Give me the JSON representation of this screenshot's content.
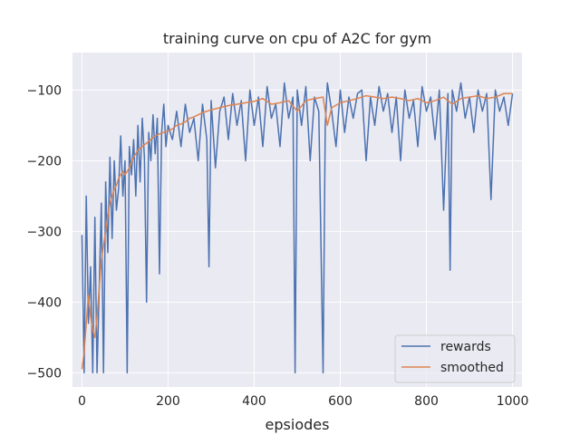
{
  "chart_data": {
    "type": "line",
    "title": "training curve on cpu of A2C for gym",
    "xlabel": "epsiodes",
    "ylabel": "",
    "xlim": [
      -22,
      1022
    ],
    "ylim": [
      -520,
      -47
    ],
    "xticks": [
      0,
      200,
      400,
      600,
      800,
      1000
    ],
    "yticks": [
      -500,
      -400,
      -300,
      -200,
      -100
    ],
    "grid": true,
    "legend_position": "lower right",
    "colors": {
      "background": "#eaeaf2",
      "grid": "#ffffff",
      "rewards": "#4c72b0",
      "smoothed": "#dd8452"
    },
    "series": [
      {
        "name": "rewards",
        "color": "#4c72b0",
        "x": [
          0,
          5,
          10,
          15,
          20,
          25,
          30,
          35,
          40,
          45,
          50,
          55,
          60,
          65,
          70,
          75,
          80,
          85,
          90,
          95,
          100,
          105,
          110,
          115,
          120,
          125,
          130,
          135,
          140,
          145,
          150,
          155,
          160,
          165,
          170,
          175,
          180,
          185,
          190,
          195,
          200,
          210,
          220,
          230,
          240,
          250,
          260,
          270,
          280,
          290,
          295,
          300,
          310,
          320,
          330,
          340,
          350,
          360,
          370,
          380,
          390,
          400,
          410,
          420,
          430,
          440,
          450,
          460,
          470,
          480,
          490,
          495,
          500,
          510,
          520,
          530,
          540,
          550,
          560,
          565,
          570,
          580,
          590,
          600,
          610,
          620,
          630,
          640,
          650,
          660,
          670,
          680,
          690,
          700,
          710,
          720,
          730,
          740,
          750,
          760,
          770,
          780,
          790,
          800,
          810,
          820,
          830,
          840,
          850,
          855,
          860,
          870,
          880,
          890,
          900,
          910,
          920,
          930,
          940,
          950,
          960,
          970,
          980,
          990,
          1000
        ],
        "y": [
          -305,
          -500,
          -250,
          -430,
          -350,
          -500,
          -280,
          -500,
          -380,
          -260,
          -500,
          -230,
          -330,
          -195,
          -310,
          -200,
          -270,
          -240,
          -165,
          -250,
          -200,
          -500,
          -180,
          -220,
          -170,
          -250,
          -150,
          -230,
          -140,
          -195,
          -400,
          -160,
          -200,
          -135,
          -190,
          -140,
          -360,
          -160,
          -120,
          -180,
          -150,
          -170,
          -130,
          -180,
          -120,
          -160,
          -140,
          -200,
          -120,
          -170,
          -350,
          -115,
          -210,
          -130,
          -110,
          -170,
          -105,
          -150,
          -115,
          -200,
          -100,
          -150,
          -110,
          -180,
          -95,
          -140,
          -120,
          -180,
          -90,
          -140,
          -110,
          -500,
          -100,
          -150,
          -95,
          -200,
          -110,
          -130,
          -500,
          -150,
          -90,
          -130,
          -180,
          -100,
          -160,
          -110,
          -140,
          -105,
          -100,
          -200,
          -110,
          -150,
          -95,
          -130,
          -105,
          -160,
          -110,
          -200,
          -100,
          -140,
          -115,
          -180,
          -95,
          -130,
          -110,
          -170,
          -100,
          -270,
          -105,
          -355,
          -100,
          -130,
          -90,
          -140,
          -110,
          -160,
          -100,
          -130,
          -105,
          -255,
          -100,
          -130,
          -110,
          -150,
          -105
        ]
      },
      {
        "name": "smoothed",
        "color": "#dd8452",
        "x": [
          0,
          5,
          10,
          15,
          20,
          25,
          30,
          35,
          40,
          45,
          50,
          55,
          60,
          65,
          70,
          75,
          80,
          85,
          90,
          95,
          100,
          110,
          120,
          130,
          140,
          150,
          160,
          170,
          180,
          190,
          200,
          210,
          220,
          230,
          240,
          250,
          260,
          270,
          280,
          290,
          300,
          320,
          340,
          360,
          380,
          400,
          420,
          440,
          460,
          480,
          500,
          520,
          540,
          560,
          570,
          580,
          600,
          620,
          640,
          660,
          680,
          700,
          720,
          740,
          760,
          780,
          800,
          820,
          840,
          860,
          880,
          900,
          920,
          940,
          960,
          980,
          1000
        ],
        "y": [
          -495,
          -470,
          -430,
          -390,
          -420,
          -440,
          -450,
          -420,
          -380,
          -340,
          -320,
          -300,
          -280,
          -260,
          -250,
          -240,
          -235,
          -225,
          -220,
          -215,
          -220,
          -210,
          -195,
          -185,
          -180,
          -175,
          -170,
          -165,
          -162,
          -160,
          -158,
          -155,
          -150,
          -148,
          -145,
          -140,
          -138,
          -135,
          -132,
          -130,
          -128,
          -125,
          -122,
          -120,
          -118,
          -116,
          -112,
          -120,
          -118,
          -115,
          -130,
          -115,
          -112,
          -110,
          -150,
          -125,
          -118,
          -115,
          -112,
          -108,
          -110,
          -112,
          -110,
          -112,
          -115,
          -112,
          -118,
          -115,
          -110,
          -120,
          -112,
          -110,
          -108,
          -112,
          -110,
          -105,
          -105
        ]
      }
    ]
  }
}
